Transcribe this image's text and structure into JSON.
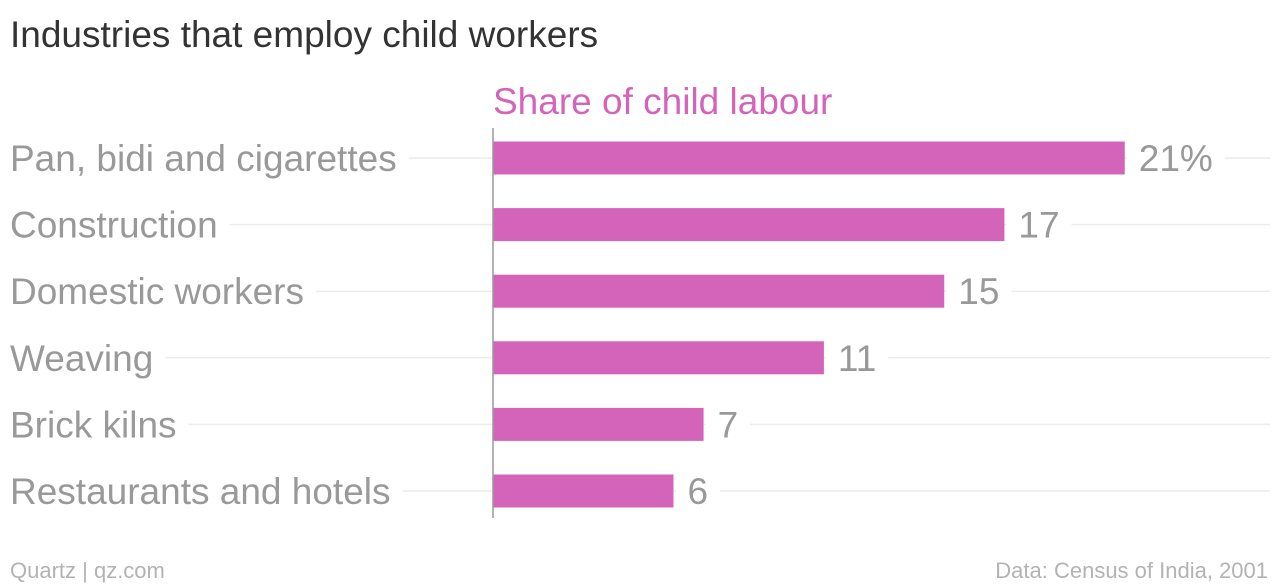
{
  "chart_data": {
    "type": "bar",
    "orientation": "horizontal",
    "title": "Industries that employ child workers",
    "series": [
      {
        "name": "Share of child labour",
        "values": [
          21,
          17,
          15,
          11,
          7,
          6
        ],
        "value_labels": [
          "21%",
          "17",
          "15",
          "11",
          "7",
          "6"
        ]
      }
    ],
    "categories": [
      "Pan, bidi and cigarettes",
      "Construction",
      "Domestic workers",
      "Weaving",
      "Brick kilns",
      "Restaurants and hotels"
    ],
    "xlim": [
      0,
      24
    ],
    "grid": false,
    "bar_color": "#d464b9"
  },
  "footer": {
    "left": "Quartz | qz.com",
    "right": "Data: Census of India, 2001"
  }
}
